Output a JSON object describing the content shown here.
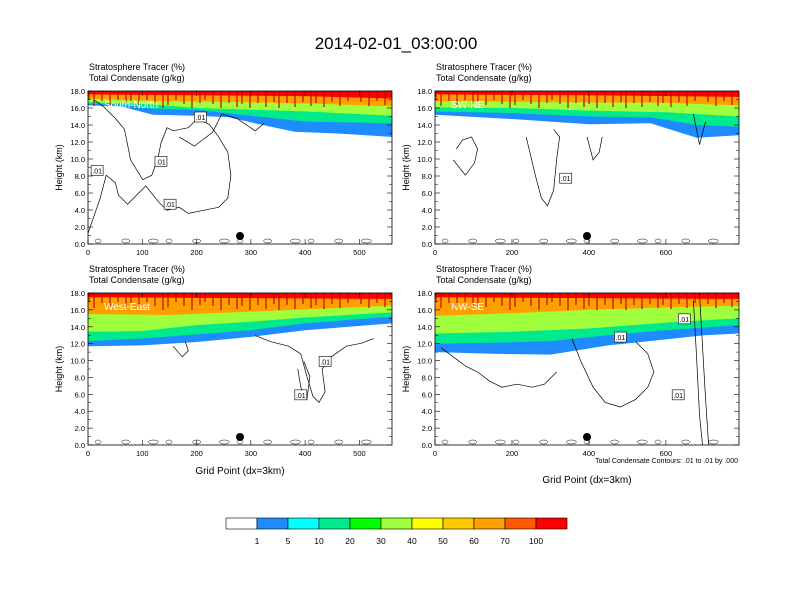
{
  "page": {
    "title": "2014-02-01_03:00:00",
    "footnote": "Total Condensate Contours: .01 to .01 by .000"
  },
  "panel_header": {
    "line1": "Stratosphere Tracer   (%)",
    "line2": "Total Condensate   (g/kg)"
  },
  "colorbar": {
    "colors": [
      "#ffffff",
      "#1e8cff",
      "#00ffff",
      "#00ea8c",
      "#00ff00",
      "#a0ff3c",
      "#ffff00",
      "#ffc800",
      "#ffa000",
      "#ff5a00",
      "#ff0000"
    ],
    "labels": [
      "1",
      "5",
      "10",
      "20",
      "30",
      "40",
      "50",
      "60",
      "70",
      "100"
    ]
  },
  "chart_data": [
    {
      "type": "contour",
      "panel_label": "South-North",
      "ylabel": "Height (km)",
      "xlabel": "",
      "xlim": [
        0,
        560
      ],
      "ylim": [
        0,
        18
      ],
      "xticks": [
        0,
        100,
        200,
        300,
        400,
        500
      ],
      "yticks": [
        "0.0",
        "2.0",
        "4.0",
        "6.0",
        "8.0",
        "10.0",
        "12.0",
        "14.0",
        "16.0",
        "18.0"
      ],
      "tracer_bands_km": [
        {
          "level": "1",
          "height": [
            [
              0,
              16.3
            ],
            [
              60,
              16.2
            ],
            [
              120,
              15.2
            ],
            [
              200,
              15.1
            ],
            [
              260,
              14.9
            ],
            [
              300,
              14.3
            ],
            [
              380,
              13.2
            ],
            [
              460,
              13.0
            ],
            [
              560,
              12.6
            ]
          ]
        },
        {
          "level": "10",
          "height": [
            [
              0,
              16.5
            ],
            [
              60,
              16.4
            ],
            [
              120,
              15.9
            ],
            [
              200,
              15.8
            ],
            [
              300,
              15.1
            ],
            [
              400,
              14.4
            ],
            [
              560,
              14.2
            ]
          ]
        },
        {
          "level": "30",
          "height": [
            [
              0,
              16.7
            ],
            [
              100,
              16.5
            ],
            [
              200,
              16.0
            ],
            [
              300,
              15.8
            ],
            [
              400,
              15.6
            ],
            [
              560,
              15.1
            ]
          ]
        },
        {
          "level": "60",
          "height": [
            [
              0,
              17.1
            ],
            [
              140,
              16.8
            ],
            [
              280,
              16.7
            ],
            [
              420,
              16.5
            ],
            [
              560,
              16.2
            ]
          ]
        },
        {
          "level": "100",
          "height": [
            [
              0,
              17.6
            ],
            [
              200,
              17.5
            ],
            [
              400,
              17.4
            ],
            [
              560,
              17.1
            ]
          ]
        }
      ],
      "contour_labels": [
        ".01",
        ".01",
        ".01",
        ".01"
      ],
      "marker_x": 280
    },
    {
      "type": "contour",
      "panel_label": "SW-NE",
      "ylabel": "Height (km)",
      "xlabel": "",
      "xlim": [
        0,
        790
      ],
      "ylim": [
        0,
        18
      ],
      "xticks": [
        0,
        200,
        400,
        600
      ],
      "yticks": [
        "0.0",
        "2.0",
        "4.0",
        "6.0",
        "8.0",
        "10.0",
        "12.0",
        "14.0",
        "16.0",
        "18.0"
      ],
      "tracer_bands_km": [
        {
          "level": "1",
          "height": [
            [
              0,
              15.2
            ],
            [
              200,
              14.7
            ],
            [
              400,
              14.1
            ],
            [
              560,
              14.2
            ],
            [
              680,
              12.5
            ],
            [
              790,
              12.8
            ]
          ]
        },
        {
          "level": "10",
          "height": [
            [
              0,
              15.6
            ],
            [
              200,
              15.4
            ],
            [
              400,
              15.0
            ],
            [
              560,
              14.9
            ],
            [
              680,
              14.0
            ],
            [
              790,
              13.8
            ]
          ]
        },
        {
          "level": "30",
          "height": [
            [
              0,
              16.1
            ],
            [
              200,
              16.0
            ],
            [
              400,
              15.7
            ],
            [
              600,
              15.5
            ],
            [
              790,
              15.0
            ]
          ]
        },
        {
          "level": "60",
          "height": [
            [
              0,
              16.8
            ],
            [
              300,
              16.7
            ],
            [
              600,
              16.6
            ],
            [
              790,
              16.3
            ]
          ]
        },
        {
          "level": "100",
          "height": [
            [
              0,
              17.6
            ],
            [
              400,
              17.5
            ],
            [
              790,
              17.3
            ]
          ]
        }
      ],
      "contour_labels": [
        ".01"
      ],
      "marker_x": 395
    },
    {
      "type": "contour",
      "panel_label": "West-East",
      "ylabel": "Height (km)",
      "xlabel": "Grid Point (dx=3km)",
      "xlim": [
        0,
        560
      ],
      "ylim": [
        0,
        18
      ],
      "xticks": [
        0,
        100,
        200,
        300,
        400,
        500
      ],
      "yticks": [
        "0.0",
        "2.0",
        "4.0",
        "6.0",
        "8.0",
        "10.0",
        "12.0",
        "14.0",
        "16.0",
        "18.0"
      ],
      "tracer_bands_km": [
        {
          "level": "1",
          "height": [
            [
              0,
              11.7
            ],
            [
              100,
              11.8
            ],
            [
              200,
              12.2
            ],
            [
              300,
              12.8
            ],
            [
              400,
              13.6
            ],
            [
              560,
              14.4
            ]
          ]
        },
        {
          "level": "10",
          "height": [
            [
              0,
              12.3
            ],
            [
              100,
              12.6
            ],
            [
              200,
              13.1
            ],
            [
              300,
              13.6
            ],
            [
              400,
              14.4
            ],
            [
              560,
              15.2
            ]
          ]
        },
        {
          "level": "30",
          "height": [
            [
              0,
              13.4
            ],
            [
              100,
              13.5
            ],
            [
              200,
              14.2
            ],
            [
              300,
              14.6
            ],
            [
              400,
              15.1
            ],
            [
              560,
              15.7
            ]
          ]
        },
        {
          "level": "60",
          "height": [
            [
              0,
              15.5
            ],
            [
              150,
              15.4
            ],
            [
              300,
              15.8
            ],
            [
              450,
              16.2
            ],
            [
              560,
              16.5
            ]
          ]
        },
        {
          "level": "100",
          "height": [
            [
              0,
              17.5
            ],
            [
              280,
              17.4
            ],
            [
              560,
              17.3
            ]
          ]
        }
      ],
      "contour_labels": [
        ".01",
        ".01"
      ],
      "marker_x": 280
    },
    {
      "type": "contour",
      "panel_label": "NW-SE",
      "ylabel": "Height (km)",
      "xlabel": "Grid Point (dx=3km)",
      "xlim": [
        0,
        790
      ],
      "ylim": [
        0,
        18
      ],
      "xticks": [
        0,
        200,
        400,
        600
      ],
      "yticks": [
        "0.0",
        "2.0",
        "4.0",
        "6.0",
        "8.0",
        "10.0",
        "12.0",
        "14.0",
        "16.0",
        "18.0"
      ],
      "tracer_bands_km": [
        {
          "level": "1",
          "height": [
            [
              0,
              11.0
            ],
            [
              150,
              10.8
            ],
            [
              300,
              10.7
            ],
            [
              450,
              11.8
            ],
            [
              600,
              12.5
            ],
            [
              700,
              13.0
            ],
            [
              790,
              13.2
            ]
          ]
        },
        {
          "level": "10",
          "height": [
            [
              0,
              12.0
            ],
            [
              150,
              12.1
            ],
            [
              300,
              12.3
            ],
            [
              450,
              13.0
            ],
            [
              600,
              13.6
            ],
            [
              790,
              14.2
            ]
          ]
        },
        {
          "level": "30",
          "height": [
            [
              0,
              13.2
            ],
            [
              200,
              13.4
            ],
            [
              400,
              13.8
            ],
            [
              600,
              14.5
            ],
            [
              790,
              15.0
            ]
          ]
        },
        {
          "level": "60",
          "height": [
            [
              0,
              15.3
            ],
            [
              200,
              15.6
            ],
            [
              400,
              16.0
            ],
            [
              600,
              16.3
            ],
            [
              790,
              16.5
            ]
          ]
        },
        {
          "level": "100",
          "height": [
            [
              0,
              17.5
            ],
            [
              400,
              17.4
            ],
            [
              790,
              17.3
            ]
          ]
        }
      ],
      "contour_labels": [
        ".01",
        ".01",
        ".01"
      ],
      "marker_x": 395
    }
  ]
}
